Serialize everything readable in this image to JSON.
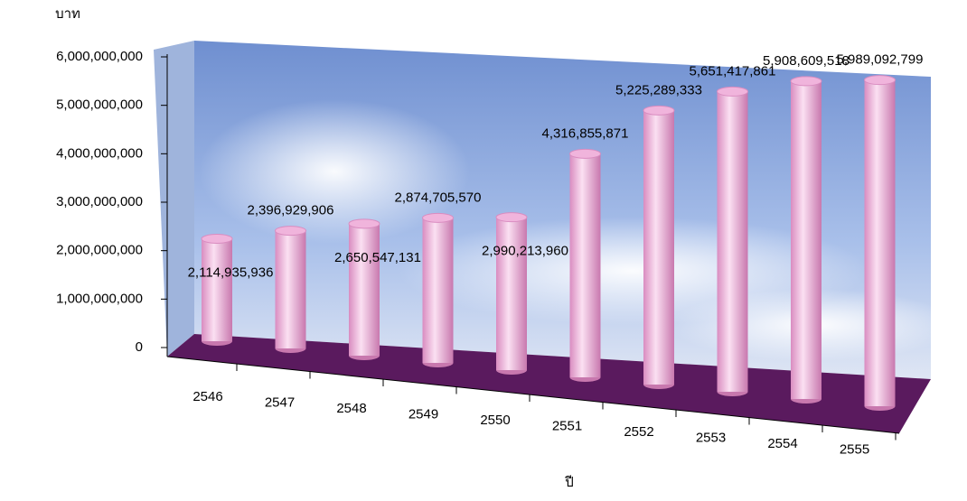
{
  "chart_data": {
    "type": "bar",
    "y_axis_label": "บาท",
    "x_axis_label": "ปี",
    "categories": [
      "2546",
      "2547",
      "2548",
      "2549",
      "2550",
      "2551",
      "2552",
      "2553",
      "2554",
      "2555"
    ],
    "values": [
      2114935936,
      2396929906,
      2650547131,
      2874705570,
      2990213960,
      4316855871,
      5225289333,
      5651417861,
      5908609518,
      5989092799
    ],
    "value_labels": [
      "2,114,935,936",
      "2,396,929,906",
      "2,650,547,131",
      "2,874,705,570",
      "2,990,213,960",
      "4,316,855,871",
      "5,225,289,333",
      "5,651,417,861",
      "5,908,609,518",
      "5,989,092,799"
    ],
    "color": "#f0b4dc",
    "ylim": [
      0,
      6000000000
    ],
    "yticks": [
      0,
      {
        "value": 1000000000,
        "label": "1,000,000,000"
      },
      {
        "value": 2000000000,
        "label": "2,000,000,000"
      },
      {
        "value": 3000000000,
        "label": "3,000,000,000"
      },
      {
        "value": 4000000000,
        "label": "4,000,000,000"
      },
      {
        "value": 5000000000,
        "label": "5,000,000,000"
      },
      {
        "value": 6000000000,
        "label": "6,000,000,000"
      }
    ]
  }
}
